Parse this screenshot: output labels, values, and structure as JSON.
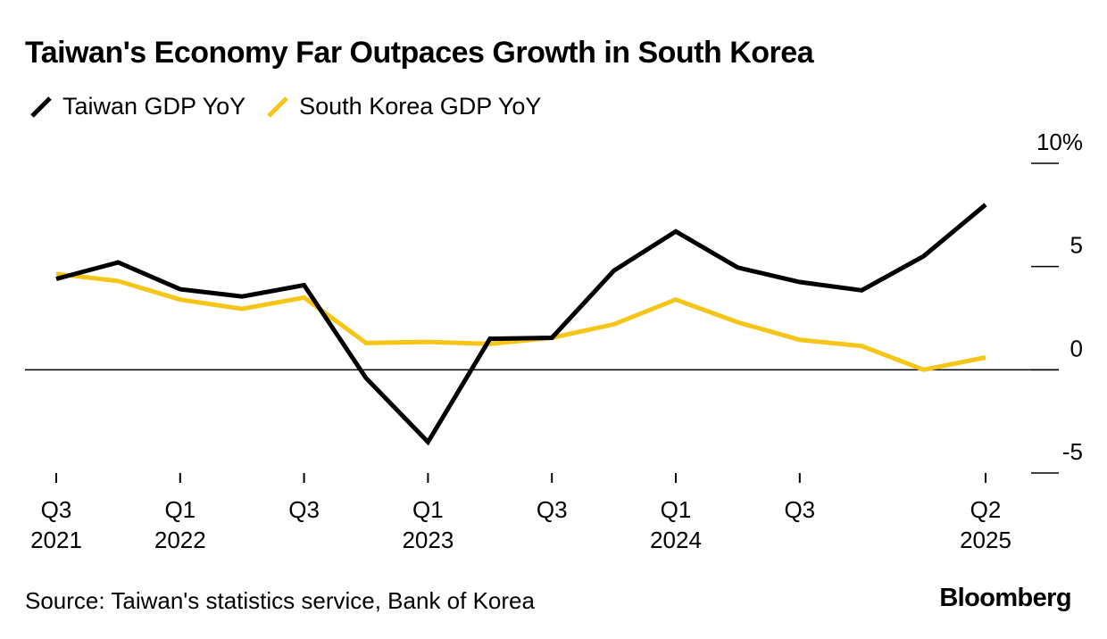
{
  "title": "Taiwan's Economy Far Outpaces Growth in South Korea",
  "legend": [
    {
      "label": "Taiwan GDP YoY",
      "color": "#000000"
    },
    {
      "label": "South Korea GDP YoY",
      "color": "#f5c518"
    }
  ],
  "source": "Source: Taiwan's statistics service, Bank of Korea",
  "brand": "Bloomberg",
  "chart_data": {
    "type": "line",
    "title": "Taiwan's Economy Far Outpaces Growth in South Korea",
    "xlabel": "",
    "ylabel": "",
    "x": [
      "Q3 2021",
      "Q4 2021",
      "Q1 2022",
      "Q2 2022",
      "Q3 2022",
      "Q4 2022",
      "Q1 2023",
      "Q2 2023",
      "Q3 2023",
      "Q4 2023",
      "Q1 2024",
      "Q2 2024",
      "Q3 2024",
      "Q4 2024",
      "Q1 2025",
      "Q2 2025"
    ],
    "series": [
      {
        "name": "Taiwan GDP YoY",
        "color": "#000000",
        "values": [
          4.4,
          5.2,
          3.9,
          3.55,
          4.1,
          -0.4,
          -3.5,
          1.5,
          1.55,
          4.8,
          6.7,
          4.95,
          4.25,
          3.85,
          5.5,
          8.0
        ]
      },
      {
        "name": "South Korea GDP YoY",
        "color": "#f5c518",
        "values": [
          4.65,
          4.3,
          3.4,
          2.95,
          3.5,
          1.3,
          1.35,
          1.25,
          1.55,
          2.2,
          3.4,
          2.3,
          1.45,
          1.15,
          0.0,
          0.6
        ]
      }
    ],
    "x_ticks": [
      {
        "index": 0,
        "line1": "Q3",
        "line2": "2021"
      },
      {
        "index": 2,
        "line1": "Q1",
        "line2": "2022"
      },
      {
        "index": 4,
        "line1": "Q3",
        "line2": ""
      },
      {
        "index": 6,
        "line1": "Q1",
        "line2": "2023"
      },
      {
        "index": 8,
        "line1": "Q3",
        "line2": ""
      },
      {
        "index": 10,
        "line1": "Q1",
        "line2": "2024"
      },
      {
        "index": 12,
        "line1": "Q3",
        "line2": ""
      },
      {
        "index": 15,
        "line1": "Q2",
        "line2": "2025"
      }
    ],
    "y_ticks": [
      {
        "value": 10,
        "label": "10%"
      },
      {
        "value": 5,
        "label": "5"
      },
      {
        "value": 0,
        "label": "0"
      },
      {
        "value": -5,
        "label": "-5"
      }
    ],
    "ylim": [
      -5,
      10
    ],
    "zero_line": true,
    "grid": false,
    "legend_position": "top-left"
  }
}
